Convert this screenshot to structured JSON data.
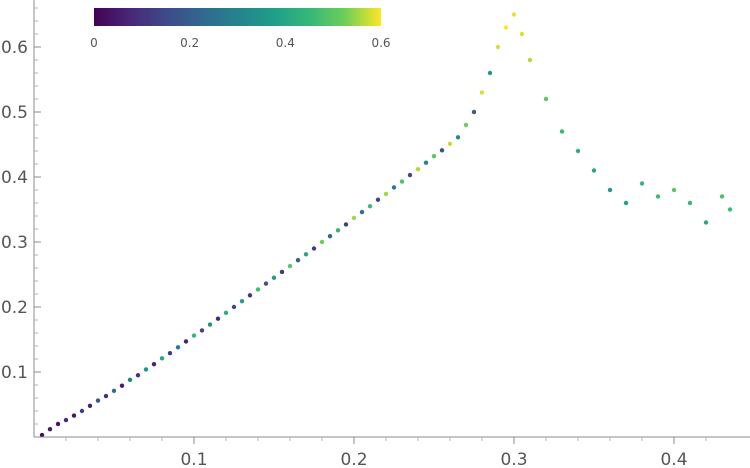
{
  "chart_data": {
    "type": "scatter",
    "title": "",
    "xlabel": "",
    "ylabel": "",
    "xlim": [
      0,
      0.44
    ],
    "ylim": [
      0,
      0.67
    ],
    "x_ticks": [
      {
        "value": 0.1,
        "label": "0.1"
      },
      {
        "value": 0.2,
        "label": "0.2"
      },
      {
        "value": 0.3,
        "label": "0.3"
      },
      {
        "value": 0.4,
        "label": "0.4"
      }
    ],
    "y_ticks": [
      {
        "value": 0.1,
        "label": "0.1"
      },
      {
        "value": 0.2,
        "label": "0.2"
      },
      {
        "value": 0.3,
        "label": "0.3"
      },
      {
        "value": 0.4,
        "label": "0.4"
      },
      {
        "value": 0.5,
        "label": "0.5"
      },
      {
        "value": 0.6,
        "label": "0.6"
      }
    ],
    "grid": false,
    "legend": "none",
    "colorbar": {
      "placement": "top-left",
      "range": [
        0,
        0.6
      ],
      "ticks": [
        {
          "value": 0,
          "label": "0"
        },
        {
          "value": 0.2,
          "label": "0.2"
        },
        {
          "value": 0.4,
          "label": "0.4"
        },
        {
          "value": 0.6,
          "label": "0.6"
        }
      ],
      "colormap": "viridis"
    },
    "point_color": "#dark-to-yellow viridis",
    "points": [
      [
        0.005,
        0.003,
        0.02
      ],
      [
        0.01,
        0.012,
        0.05
      ],
      [
        0.015,
        0.02,
        0.03
      ],
      [
        0.02,
        0.026,
        0.08
      ],
      [
        0.025,
        0.033,
        0.04
      ],
      [
        0.03,
        0.04,
        0.12
      ],
      [
        0.035,
        0.048,
        0.06
      ],
      [
        0.04,
        0.056,
        0.18
      ],
      [
        0.045,
        0.063,
        0.09
      ],
      [
        0.05,
        0.071,
        0.25
      ],
      [
        0.055,
        0.079,
        0.05
      ],
      [
        0.06,
        0.088,
        0.3
      ],
      [
        0.065,
        0.095,
        0.1
      ],
      [
        0.07,
        0.104,
        0.35
      ],
      [
        0.075,
        0.112,
        0.07
      ],
      [
        0.08,
        0.121,
        0.4
      ],
      [
        0.085,
        0.129,
        0.12
      ],
      [
        0.09,
        0.138,
        0.28
      ],
      [
        0.095,
        0.147,
        0.06
      ],
      [
        0.1,
        0.156,
        0.45
      ],
      [
        0.105,
        0.164,
        0.14
      ],
      [
        0.11,
        0.173,
        0.33
      ],
      [
        0.115,
        0.182,
        0.08
      ],
      [
        0.12,
        0.191,
        0.42
      ],
      [
        0.125,
        0.2,
        0.15
      ],
      [
        0.13,
        0.209,
        0.38
      ],
      [
        0.135,
        0.218,
        0.1
      ],
      [
        0.14,
        0.227,
        0.47
      ],
      [
        0.145,
        0.236,
        0.18
      ],
      [
        0.15,
        0.245,
        0.36
      ],
      [
        0.155,
        0.254,
        0.09
      ],
      [
        0.16,
        0.263,
        0.5
      ],
      [
        0.165,
        0.272,
        0.2
      ],
      [
        0.17,
        0.281,
        0.4
      ],
      [
        0.175,
        0.29,
        0.11
      ],
      [
        0.18,
        0.3,
        0.52
      ],
      [
        0.185,
        0.309,
        0.22
      ],
      [
        0.19,
        0.318,
        0.44
      ],
      [
        0.195,
        0.327,
        0.12
      ],
      [
        0.2,
        0.337,
        0.55
      ],
      [
        0.205,
        0.346,
        0.25
      ],
      [
        0.21,
        0.355,
        0.46
      ],
      [
        0.215,
        0.365,
        0.14
      ],
      [
        0.22,
        0.374,
        0.55
      ],
      [
        0.225,
        0.384,
        0.27
      ],
      [
        0.23,
        0.393,
        0.48
      ],
      [
        0.235,
        0.403,
        0.15
      ],
      [
        0.24,
        0.412,
        0.56
      ],
      [
        0.245,
        0.422,
        0.3
      ],
      [
        0.25,
        0.432,
        0.5
      ],
      [
        0.255,
        0.441,
        0.17
      ],
      [
        0.26,
        0.451,
        0.57
      ],
      [
        0.265,
        0.461,
        0.33
      ],
      [
        0.27,
        0.48,
        0.52
      ],
      [
        0.275,
        0.5,
        0.19
      ],
      [
        0.28,
        0.53,
        0.58
      ],
      [
        0.285,
        0.56,
        0.36
      ],
      [
        0.29,
        0.6,
        0.58
      ],
      [
        0.295,
        0.63,
        0.6
      ],
      [
        0.3,
        0.65,
        0.59
      ],
      [
        0.305,
        0.62,
        0.58
      ],
      [
        0.31,
        0.58,
        0.56
      ],
      [
        0.32,
        0.52,
        0.5
      ],
      [
        0.33,
        0.47,
        0.45
      ],
      [
        0.34,
        0.44,
        0.42
      ],
      [
        0.35,
        0.41,
        0.4
      ],
      [
        0.36,
        0.38,
        0.36
      ],
      [
        0.37,
        0.36,
        0.38
      ],
      [
        0.38,
        0.39,
        0.44
      ],
      [
        0.39,
        0.37,
        0.46
      ],
      [
        0.4,
        0.38,
        0.5
      ],
      [
        0.41,
        0.36,
        0.45
      ],
      [
        0.42,
        0.33,
        0.4
      ],
      [
        0.43,
        0.37,
        0.48
      ],
      [
        0.435,
        0.35,
        0.46
      ]
    ]
  }
}
